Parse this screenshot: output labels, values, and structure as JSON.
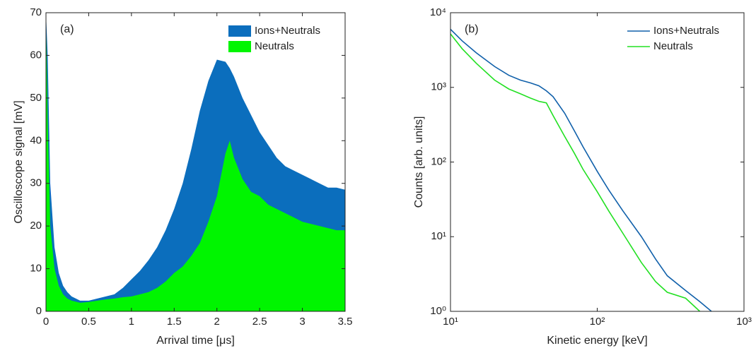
{
  "chart_data": [
    {
      "type": "area",
      "annotation": "(a)",
      "x_label": "Arrival time [μs]",
      "y_label": "Oscilloscope signal [mV]",
      "x": [
        0,
        0.02,
        0.05,
        0.1,
        0.15,
        0.2,
        0.25,
        0.3,
        0.4,
        0.5,
        0.6,
        0.7,
        0.8,
        0.9,
        1.0,
        1.1,
        1.2,
        1.3,
        1.4,
        1.5,
        1.6,
        1.7,
        1.8,
        1.9,
        2.0,
        2.1,
        2.15,
        2.2,
        2.3,
        2.4,
        2.5,
        2.6,
        2.7,
        2.8,
        2.9,
        3.0,
        3.1,
        3.2,
        3.3,
        3.4,
        3.5
      ],
      "series": [
        {
          "name": "Ions+Neutrals",
          "color": "#0b6ebd",
          "values": [
            70,
            60,
            30,
            15,
            9,
            6,
            4.5,
            3.5,
            2.5,
            2.5,
            3,
            3.5,
            4,
            5.5,
            7.5,
            9.5,
            12,
            15,
            19,
            24,
            30,
            38,
            47,
            54,
            59,
            58.5,
            57,
            55,
            50,
            46,
            42,
            39,
            36,
            34,
            33,
            32,
            31,
            30,
            29,
            29,
            28.5
          ]
        },
        {
          "name": "Neutrals",
          "color": "#00f500",
          "values": [
            70,
            45,
            20,
            10,
            6,
            4,
            3,
            2.5,
            2,
            2.2,
            2.5,
            2.8,
            3,
            3.3,
            3.5,
            4,
            4.5,
            5.5,
            7,
            9,
            10.5,
            13,
            16,
            21,
            27,
            37,
            40,
            36,
            31,
            28,
            27,
            25,
            24,
            23,
            22,
            21,
            20.5,
            20,
            19.5,
            19,
            19
          ]
        }
      ],
      "xlim": [
        0,
        3.5
      ],
      "xticks": [
        0,
        0.5,
        1,
        1.5,
        2,
        2.5,
        3,
        3.5
      ],
      "ylim": [
        0,
        70
      ],
      "yticks": [
        0,
        10,
        20,
        30,
        40,
        50,
        60,
        70
      ],
      "legend": "northeast"
    },
    {
      "type": "line",
      "annotation": "(b)",
      "x_label": "Kinetic energy [keV]",
      "y_label": "Counts [arb. units]",
      "xscale": "log",
      "yscale": "log",
      "x": [
        10,
        12,
        15,
        20,
        25,
        30,
        35,
        40,
        45,
        50,
        60,
        70,
        80,
        100,
        120,
        150,
        200,
        250,
        300,
        400,
        500,
        600
      ],
      "series": [
        {
          "name": "Ions+Neutrals",
          "color": "#1060aa",
          "values": [
            6000,
            4200,
            2900,
            1900,
            1450,
            1250,
            1150,
            1050,
            900,
            750,
            450,
            260,
            160,
            75,
            42,
            22,
            10,
            5,
            3,
            1.9,
            1.35,
            1.0
          ]
        },
        {
          "name": "Neutrals",
          "color": "#22e022",
          "values": [
            5200,
            3300,
            2100,
            1250,
            950,
            820,
            720,
            650,
            620,
            420,
            220,
            130,
            80,
            40,
            22,
            11,
            4.5,
            2.5,
            1.8,
            1.5,
            1.0,
            null
          ]
        }
      ],
      "xlim": [
        10,
        1000
      ],
      "xticks": [
        {
          "value": 10,
          "label": "10¹"
        },
        {
          "value": 100,
          "label": "10²"
        },
        {
          "value": 1000,
          "label": "10³"
        }
      ],
      "ylim": [
        1,
        10000
      ],
      "yticks": [
        {
          "value": 1,
          "label": "10⁰"
        },
        {
          "value": 10,
          "label": "10¹"
        },
        {
          "value": 100,
          "label": "10²"
        },
        {
          "value": 1000,
          "label": "10³"
        },
        {
          "value": 10000,
          "label": "10⁴"
        }
      ],
      "legend": "northeast"
    }
  ]
}
